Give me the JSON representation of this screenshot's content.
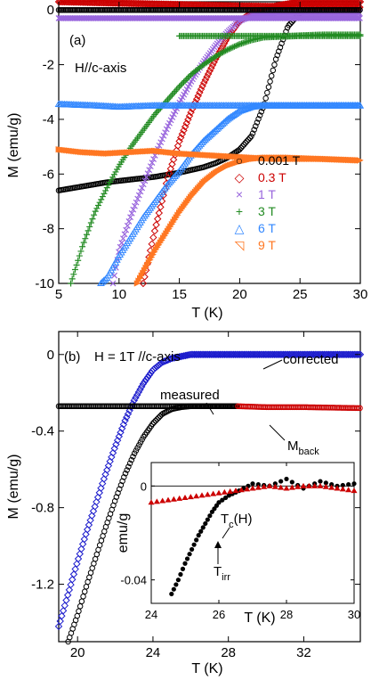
{
  "chart_data": [
    {
      "type": "scatter",
      "panel_label": "(a)",
      "annotation": "H//c-axis",
      "xlabel": "T (K)",
      "ylabel": "M (emu/g)",
      "xlim": [
        5,
        30
      ],
      "ylim": [
        -10,
        0.3
      ],
      "xticks": [
        "5",
        "10",
        "15",
        "20",
        "25",
        "30"
      ],
      "yticks": [
        "0",
        "-2",
        "-4",
        "-6",
        "-8",
        "-10"
      ],
      "legend_position": "lower-right",
      "series": [
        {
          "name": "0.001 T",
          "color": "#000000",
          "marker": "circle",
          "x": [
            5,
            7,
            9,
            11,
            13,
            15,
            17,
            18,
            19,
            20,
            21,
            22,
            23,
            24,
            25,
            26,
            28,
            30
          ],
          "y": [
            -6.6,
            -6.45,
            -6.3,
            -6.2,
            -6.1,
            -5.95,
            -5.75,
            -5.6,
            -5.4,
            -5.1,
            -4.6,
            -3.5,
            -1.8,
            -0.6,
            -0.1,
            0.0,
            0.0,
            0.0
          ]
        },
        {
          "name": "0.3 T",
          "color": "#cc0000",
          "marker": "diamond",
          "x": [
            12,
            13,
            14,
            15,
            16,
            17,
            18,
            19,
            20,
            21,
            22,
            23,
            25,
            30
          ],
          "y": [
            -10,
            -8.0,
            -6.2,
            -4.8,
            -3.7,
            -2.7,
            -1.8,
            -1.0,
            -0.4,
            -0.1,
            0.0,
            0.15,
            0.3,
            0.3
          ]
        },
        {
          "name": "1 T",
          "color": "#9966dd",
          "marker": "x",
          "x": [
            9.5,
            10,
            11,
            12,
            13,
            14,
            15,
            16,
            17,
            18,
            19,
            20,
            21,
            22,
            23,
            25,
            30
          ],
          "y": [
            -10,
            -8.8,
            -7.5,
            -6.4,
            -5.3,
            -4.3,
            -3.4,
            -2.6,
            -1.9,
            -1.3,
            -0.8,
            -0.4,
            -0.2,
            -0.15,
            -0.1,
            -0.1,
            -0.1
          ]
        },
        {
          "name": "3 T",
          "color": "#228b22",
          "marker": "plus",
          "x": [
            6,
            7,
            8,
            9,
            10,
            11,
            12,
            13,
            14,
            15,
            16,
            17,
            18,
            19,
            20,
            21,
            22,
            25,
            30
          ],
          "y": [
            -10,
            -8.6,
            -7.4,
            -6.5,
            -5.7,
            -5.0,
            -4.4,
            -3.8,
            -3.3,
            -2.8,
            -2.35,
            -2.0,
            -1.7,
            -1.45,
            -1.25,
            -1.1,
            -1.0,
            -0.95,
            -0.95
          ]
        },
        {
          "name": "6 T",
          "color": "#3388ff",
          "marker": "triangle",
          "x": [
            8.5,
            9,
            10,
            11,
            12,
            13,
            14,
            15,
            16,
            17,
            18,
            19,
            20,
            21,
            22,
            25,
            30
          ],
          "y": [
            -10,
            -9.8,
            -9.0,
            -8.3,
            -7.6,
            -7.0,
            -6.4,
            -5.9,
            -5.3,
            -4.8,
            -4.4,
            -4.0,
            -3.7,
            -3.55,
            -3.5,
            -3.5,
            -3.5
          ]
        },
        {
          "name": "9 T",
          "color": "#ff7722",
          "marker": "triangle-right",
          "x": [
            11.5,
            12,
            13,
            14,
            15,
            16,
            17,
            18,
            19,
            20,
            21,
            22,
            24,
            27,
            30
          ],
          "y": [
            -10,
            -9.6,
            -8.8,
            -8.1,
            -7.4,
            -6.8,
            -6.3,
            -5.95,
            -5.7,
            -5.55,
            -5.45,
            -5.4,
            -5.4,
            -5.45,
            -5.5
          ]
        },
        {
          "name": "",
          "color": "#ff7722",
          "marker": "triangle-right",
          "legend": false,
          "x": [
            5,
            7,
            9,
            11,
            13,
            15,
            17,
            19,
            21,
            23,
            25,
            27,
            30
          ],
          "y": [
            -5.1,
            -5.2,
            -5.25,
            -5.2,
            -5.15,
            -5.25,
            -5.3,
            -5.35,
            -5.4,
            -5.45,
            -5.45,
            -5.45,
            -5.5
          ]
        },
        {
          "name": "",
          "color": "#3388ff",
          "marker": "triangle",
          "legend": false,
          "x": [
            5,
            8,
            10,
            13,
            16,
            19,
            22,
            25,
            28,
            30
          ],
          "y": [
            -3.45,
            -3.5,
            -3.55,
            -3.5,
            -3.5,
            -3.5,
            -3.5,
            -3.5,
            -3.5,
            -3.5
          ]
        },
        {
          "name": "",
          "color": "#228b22",
          "marker": "plus",
          "legend": false,
          "x": [
            15,
            18,
            21,
            24,
            27,
            30
          ],
          "y": [
            -0.95,
            -0.95,
            -0.95,
            -0.95,
            -0.9,
            -0.9
          ]
        },
        {
          "name": "",
          "color": "#cc0000",
          "marker": "diamond",
          "legend": false,
          "x": [
            5,
            10,
            15,
            20,
            25,
            30
          ],
          "y": [
            0.3,
            0.25,
            0.2,
            0.15,
            0.12,
            0.1
          ]
        },
        {
          "name": "",
          "color": "#000000",
          "marker": "circle",
          "legend": false,
          "x": [
            5,
            10,
            15,
            20,
            25,
            30
          ],
          "y": [
            0.0,
            0.0,
            0.0,
            0.0,
            0.0,
            0.0
          ]
        },
        {
          "name": "",
          "color": "#9966dd",
          "marker": "x",
          "legend": false,
          "x": [
            5,
            10,
            15,
            20,
            25,
            30
          ],
          "y": [
            -0.3,
            -0.3,
            -0.3,
            -0.3,
            -0.3,
            -0.3
          ]
        }
      ]
    },
    {
      "type": "scatter",
      "panel_label": "(b)",
      "annotation": "H = 1T  //c-axis",
      "xlabel": "T (K)",
      "ylabel": "M (emu/g)",
      "xlim": [
        19,
        35
      ],
      "ylim": [
        -1.5,
        0.12
      ],
      "xticks": [
        "20",
        "24",
        "28",
        "32"
      ],
      "yticks": [
        "0",
        "-0.4",
        "-0.8",
        "-1.2"
      ],
      "labels": {
        "corrected": "corrected",
        "measured": "measured",
        "mback": "M",
        "mback_sub": "back"
      },
      "series": [
        {
          "name": "corrected",
          "color": "#1a1acc",
          "marker": "diamond",
          "x": [
            19,
            19.5,
            20,
            20.5,
            21,
            21.5,
            22,
            22.5,
            23,
            23.5,
            24,
            24.5,
            25,
            25.5,
            26,
            28,
            31,
            35
          ],
          "y": [
            -1.42,
            -1.25,
            -1.08,
            -0.92,
            -0.77,
            -0.62,
            -0.48,
            -0.35,
            -0.24,
            -0.15,
            -0.08,
            -0.04,
            -0.02,
            -0.01,
            0.0,
            0.0,
            0.0,
            0.0
          ]
        },
        {
          "name": "measured",
          "color": "#000000",
          "marker": "circle",
          "x": [
            19.5,
            20,
            20.5,
            21,
            21.5,
            22,
            22.5,
            23,
            23.5,
            24,
            24.5,
            25,
            25.5,
            26,
            27,
            28.5
          ],
          "y": [
            -1.5,
            -1.36,
            -1.2,
            -1.05,
            -0.9,
            -0.76,
            -0.63,
            -0.52,
            -0.43,
            -0.36,
            -0.31,
            -0.285,
            -0.275,
            -0.27,
            -0.27,
            -0.27
          ]
        },
        {
          "name": "measured-upper",
          "color": "#000000",
          "marker": "circle",
          "x": [
            19,
            20,
            21,
            22,
            23,
            24,
            25,
            26,
            27,
            28.5
          ],
          "y": [
            -0.27,
            -0.27,
            -0.27,
            -0.27,
            -0.27,
            -0.27,
            -0.27,
            -0.27,
            -0.27,
            -0.27
          ]
        },
        {
          "name": "M back",
          "color": "#cc0000",
          "marker": "circle",
          "x": [
            28.5,
            30,
            32,
            35
          ],
          "y": [
            -0.27,
            -0.275,
            -0.275,
            -0.28
          ]
        }
      ],
      "inset": {
        "xlabel": "T (K)",
        "ylabel": "emu/g",
        "xlim": [
          24,
          30
        ],
        "ylim": [
          -0.05,
          0.01
        ],
        "xticks": [
          "24",
          "26",
          "28",
          "30"
        ],
        "yticks": [
          "0",
          "-0.04"
        ],
        "labels": {
          "tc": "T",
          "tc_sub": "c",
          "tc_arg": "(H)",
          "tirr": "T",
          "tirr_sub": "irr"
        },
        "series": [
          {
            "name": "black",
            "color": "#000000",
            "marker": "circle",
            "x": [
              24.6,
              24.8,
              25.0,
              25.2,
              25.4,
              25.6,
              25.8,
              26.0,
              26.3,
              26.6,
              27.0,
              27.5,
              28.0,
              28.5,
              29.0,
              29.5,
              30.0
            ],
            "y": [
              -0.046,
              -0.04,
              -0.033,
              -0.027,
              -0.021,
              -0.016,
              -0.011,
              -0.007,
              -0.004,
              -0.002,
              0.001,
              0.0,
              0.003,
              -0.001,
              0.002,
              0.0,
              0.001
            ]
          },
          {
            "name": "red",
            "color": "#cc0000",
            "marker": "triangle",
            "x": [
              24.0,
              24.5,
              25.0,
              25.5,
              26.0,
              26.5,
              27.0,
              27.5,
              28.0,
              28.5,
              29.0,
              29.5,
              30.0
            ],
            "y": [
              -0.007,
              -0.006,
              -0.005,
              -0.004,
              -0.003,
              -0.002,
              -0.001,
              0.0,
              -0.001,
              0.0,
              0.0,
              -0.001,
              -0.002
            ]
          }
        ]
      }
    }
  ],
  "legend": [
    {
      "label": "0.001 T",
      "color": "#000000",
      "symbol": "○"
    },
    {
      "label": "0.3 T",
      "color": "#cc0000",
      "symbol": "◇"
    },
    {
      "label": "1 T",
      "color": "#9966dd",
      "symbol": "×"
    },
    {
      "label": "3 T",
      "color": "#228b22",
      "symbol": "+"
    },
    {
      "label": "6 T",
      "color": "#3388ff",
      "symbol": "△"
    },
    {
      "label": "9 T",
      "color": "#ff7722",
      "symbol": "◹"
    }
  ]
}
